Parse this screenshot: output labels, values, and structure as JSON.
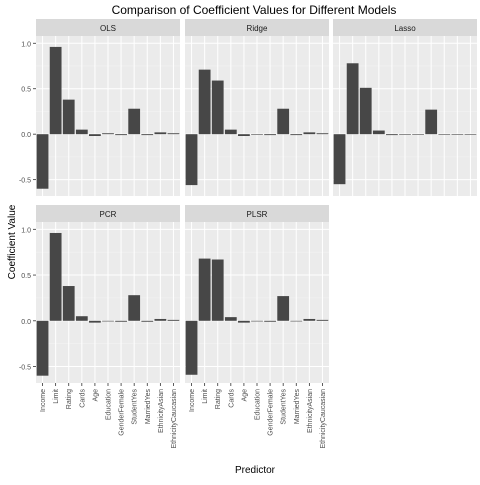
{
  "chart_data": {
    "type": "bar",
    "title": "Comparison of Coefficient Values for Different Models",
    "xlabel": "Predictor",
    "ylabel": "Coefficient Value",
    "ylim": [
      -0.68,
      1.08
    ],
    "yticks": [
      -0.5,
      0.0,
      0.5,
      1.0
    ],
    "ytick_labels": [
      "-0.5",
      "0.0",
      "0.5",
      "1.0"
    ],
    "grid": true,
    "categories": [
      "Income",
      "Limit",
      "Rating",
      "Cards",
      "Age",
      "Education",
      "GenderFemale",
      "StudentYes",
      "MarriedYes",
      "EthnicityAsian",
      "EthnicityCaucasian"
    ],
    "series": [
      {
        "name": "OLS",
        "values": [
          -0.6,
          0.96,
          0.38,
          0.05,
          -0.02,
          0.01,
          -0.01,
          0.28,
          -0.01,
          0.02,
          0.01
        ]
      },
      {
        "name": "Ridge",
        "values": [
          -0.56,
          0.71,
          0.59,
          0.05,
          -0.02,
          0.0,
          -0.01,
          0.28,
          -0.01,
          0.02,
          0.01
        ]
      },
      {
        "name": "Lasso",
        "values": [
          -0.55,
          0.78,
          0.51,
          0.04,
          -0.01,
          0.0,
          0.0,
          0.27,
          0.0,
          0.0,
          0.0
        ]
      },
      {
        "name": "PCR",
        "values": [
          -0.6,
          0.96,
          0.38,
          0.05,
          -0.02,
          0.0,
          -0.01,
          0.28,
          -0.01,
          0.02,
          0.01
        ]
      },
      {
        "name": "PLSR",
        "values": [
          -0.59,
          0.68,
          0.67,
          0.04,
          -0.02,
          0.0,
          -0.01,
          0.27,
          0.0,
          0.02,
          0.01
        ]
      }
    ]
  },
  "colors": {
    "bar": "#474747",
    "panel_bg": "#ebebeb",
    "strip_bg": "#d9d9d9",
    "grid_major": "#ffffff",
    "text": "#1a1a1a",
    "tick_text": "#4d4d4d"
  }
}
